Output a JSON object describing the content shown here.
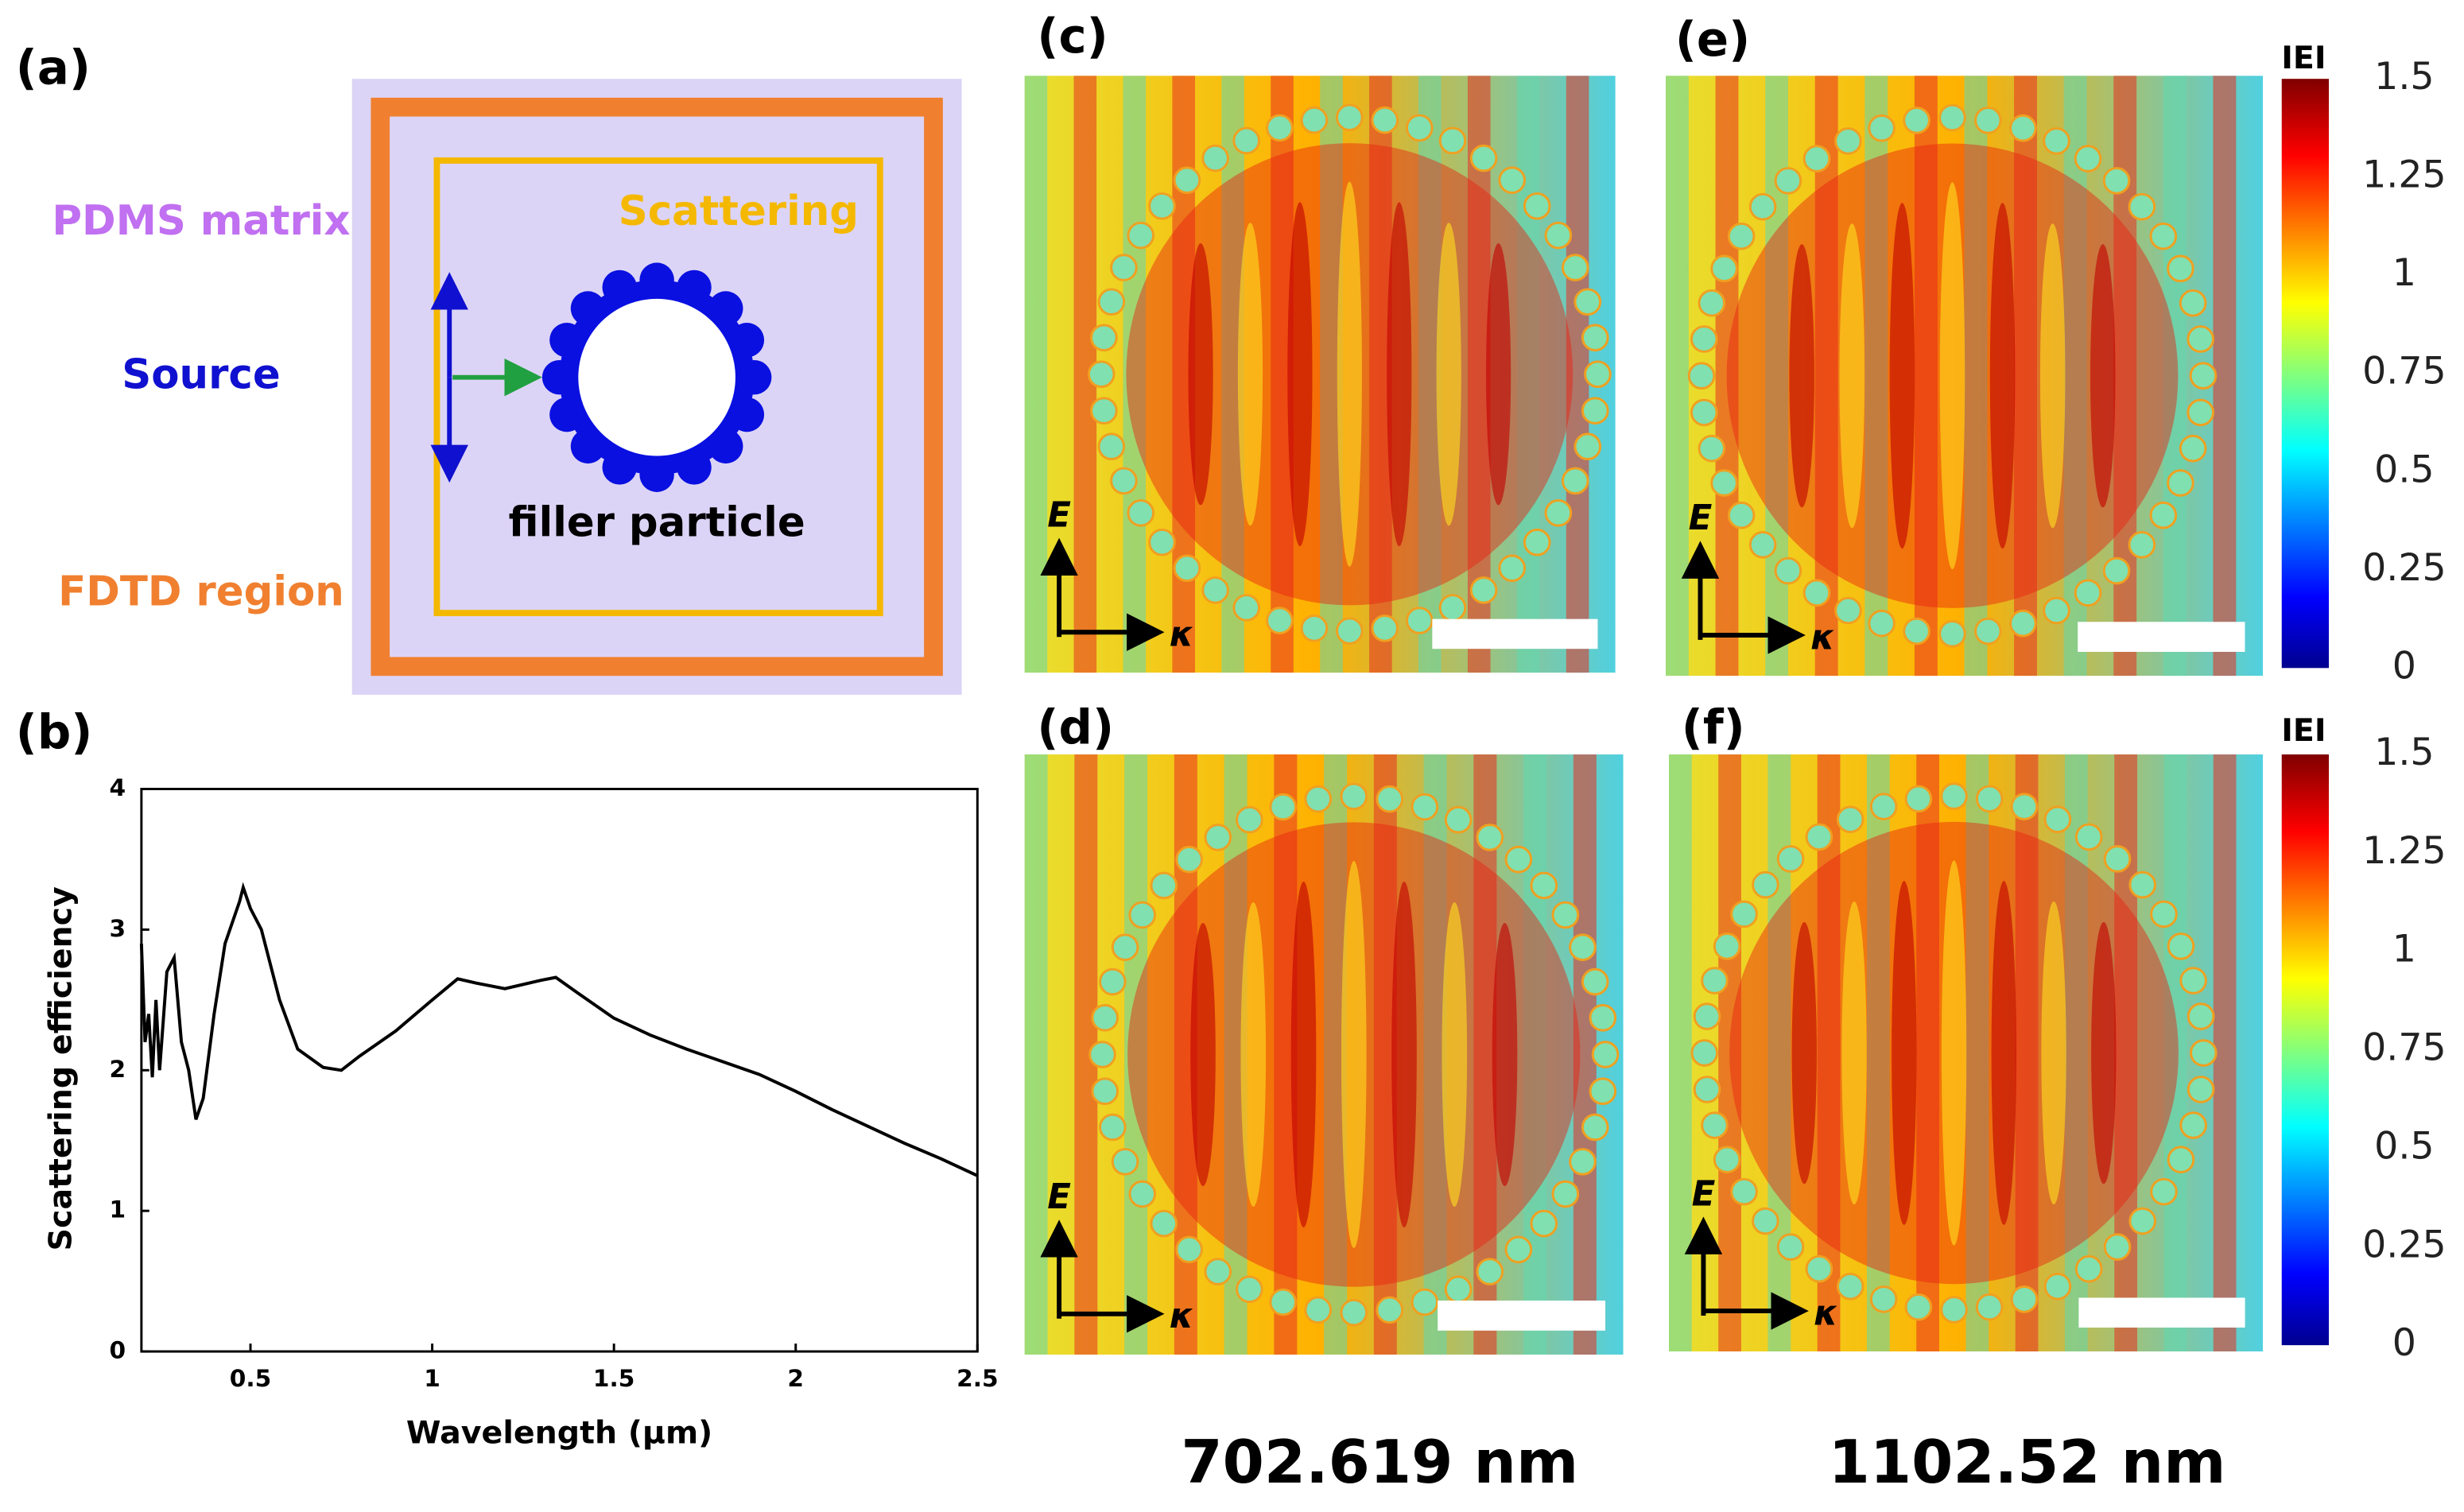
{
  "panel_a": {
    "label": "(a)",
    "pdms": "PDMS matrix",
    "scattering": "Scattering",
    "source": "Source",
    "filler": "filler particle",
    "fdtd": "FDTD region"
  },
  "chart_data": {
    "type": "line",
    "label": "(b)",
    "x_label": "Wavelength (μm)",
    "y_label": "Scattering efficiency",
    "color": "#000000",
    "x": [
      0.2,
      0.21,
      0.22,
      0.23,
      0.24,
      0.25,
      0.27,
      0.29,
      0.31,
      0.33,
      0.35,
      0.37,
      0.4,
      0.43,
      0.47,
      0.48,
      0.5,
      0.53,
      0.58,
      0.63,
      0.7,
      0.75,
      0.8,
      0.9,
      1.0,
      1.07,
      1.12,
      1.2,
      1.3,
      1.34,
      1.4,
      1.5,
      1.6,
      1.7,
      1.8,
      1.9,
      2.0,
      2.1,
      2.2,
      2.3,
      2.4,
      2.5
    ],
    "values": [
      2.9,
      2.2,
      2.4,
      1.95,
      2.5,
      2.0,
      2.7,
      2.8,
      2.2,
      2.0,
      1.65,
      1.8,
      2.4,
      2.9,
      3.2,
      3.3,
      3.15,
      3.0,
      2.5,
      2.15,
      2.02,
      2.0,
      2.1,
      2.28,
      2.5,
      2.65,
      2.62,
      2.58,
      2.64,
      2.66,
      2.55,
      2.37,
      2.25,
      2.15,
      2.06,
      1.97,
      1.85,
      1.72,
      1.6,
      1.48,
      1.37,
      1.25
    ],
    "xlim": [
      0.2,
      2.5
    ],
    "xticks": [
      0.5,
      1,
      1.5,
      2,
      2.5
    ],
    "ylim": [
      0,
      4
    ],
    "yticks": [
      0,
      1,
      2,
      3,
      4
    ]
  },
  "field_maps": [
    {
      "label": "(c)",
      "e": "E",
      "k": "κ"
    },
    {
      "label": "(e)",
      "e": "E",
      "k": "κ"
    },
    {
      "label": "(d)",
      "e": "E",
      "k": "κ"
    },
    {
      "label": "(f)",
      "e": "E",
      "k": "κ"
    }
  ],
  "colorbars": [
    {
      "title": "IEI",
      "ylim": [
        0,
        1.5
      ],
      "yticks": [
        0,
        0.25,
        0.5,
        0.75,
        1,
        1.25,
        1.5
      ]
    },
    {
      "title": "IEI",
      "ylim": [
        0,
        1.5
      ],
      "yticks": [
        0,
        0.25,
        0.5,
        0.75,
        1,
        1.25,
        1.5
      ]
    }
  ],
  "wavelengths": [
    "702.619 nm",
    "1102.52 nm"
  ]
}
